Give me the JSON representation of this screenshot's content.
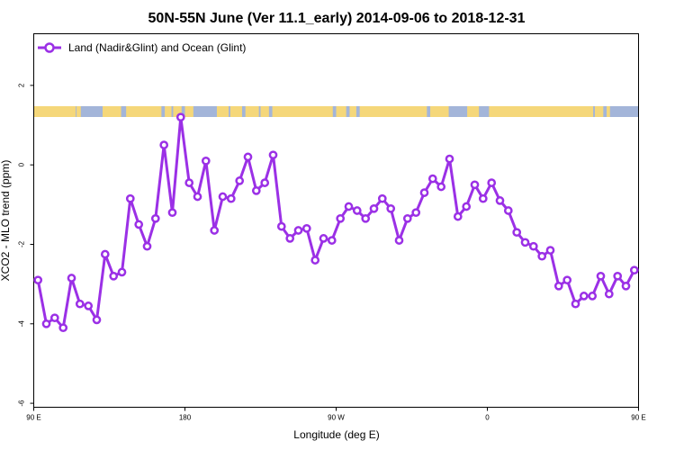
{
  "chart_data": {
    "type": "line",
    "title": "50N-55N June (Ver 11.1_early)   2014-09-06 to 2018-12-31",
    "xlabel": "Longitude (deg E)",
    "ylabel": "XCO2 - MLO trend (ppm)",
    "xlim": [
      90,
      450
    ],
    "ylim": [
      -6.1,
      3.3
    ],
    "x_ticks": [
      {
        "value": 90,
        "label": "90 E"
      },
      {
        "value": 180,
        "label": "180"
      },
      {
        "value": 270,
        "label": "90 W"
      },
      {
        "value": 360,
        "label": "0"
      },
      {
        "value": 450,
        "label": "90 E"
      }
    ],
    "y_ticks": [
      {
        "value": 2,
        "label": "2"
      },
      {
        "value": 0,
        "label": "0"
      },
      {
        "value": -2,
        "label": "-2"
      },
      {
        "value": -4,
        "label": "-4"
      },
      {
        "value": -6,
        "label": "-6"
      }
    ],
    "legend": {
      "position": "top-left"
    },
    "colors": {
      "series": "#9b30e6",
      "land": "#f5d77a",
      "ocean": "#a3b5d9"
    },
    "series": [
      {
        "name": "Land (Nadir&Glint) and Ocean (Glint)",
        "x": [
          92.5,
          97.5,
          102.5,
          107.5,
          112.5,
          117.5,
          122.5,
          127.5,
          132.5,
          137.5,
          142.5,
          147.5,
          152.5,
          157.5,
          162.5,
          167.5,
          172.5,
          177.5,
          182.5,
          187.5,
          192.5,
          197.5,
          202.5,
          207.5,
          212.5,
          217.5,
          222.5,
          227.5,
          232.5,
          237.5,
          242.5,
          247.5,
          252.5,
          257.5,
          262.5,
          267.5,
          272.5,
          277.5,
          282.5,
          287.5,
          292.5,
          297.5,
          302.5,
          307.5,
          312.5,
          317.5,
          322.5,
          327.5,
          332.5,
          337.5,
          342.5,
          347.5,
          352.5,
          357.5,
          362.5,
          367.5,
          372.5,
          377.5,
          382.5,
          387.5,
          392.5,
          397.5,
          402.5,
          407.5,
          412.5,
          417.5,
          422.5,
          427.5,
          432.5,
          437.5,
          442.5,
          447.5
        ],
        "y": [
          -2.9,
          -4.0,
          -3.85,
          -4.1,
          -2.85,
          -3.5,
          -3.55,
          -3.9,
          -2.25,
          -2.8,
          -2.7,
          -0.85,
          -1.5,
          -2.05,
          -1.35,
          0.5,
          -1.2,
          1.2,
          -0.45,
          -0.8,
          0.1,
          -1.65,
          -0.8,
          -0.85,
          -0.4,
          0.2,
          -0.65,
          -0.45,
          0.25,
          -1.55,
          -1.85,
          -1.65,
          -1.6,
          -2.4,
          -1.85,
          -1.9,
          -1.35,
          -1.05,
          -1.15,
          -1.35,
          -1.1,
          -0.85,
          -1.1,
          -1.9,
          -1.35,
          -1.2,
          -0.7,
          -0.35,
          -0.55,
          0.15,
          -1.3,
          -1.05,
          -0.5,
          -0.85,
          -0.45,
          -0.9,
          -1.15,
          -1.7,
          -1.95,
          -2.05,
          -2.3,
          -2.15,
          -3.05,
          -2.9,
          -3.5,
          -3.3,
          -3.3,
          -2.8,
          -3.25,
          -2.8,
          -3.05,
          -2.65
        ]
      }
    ]
  }
}
